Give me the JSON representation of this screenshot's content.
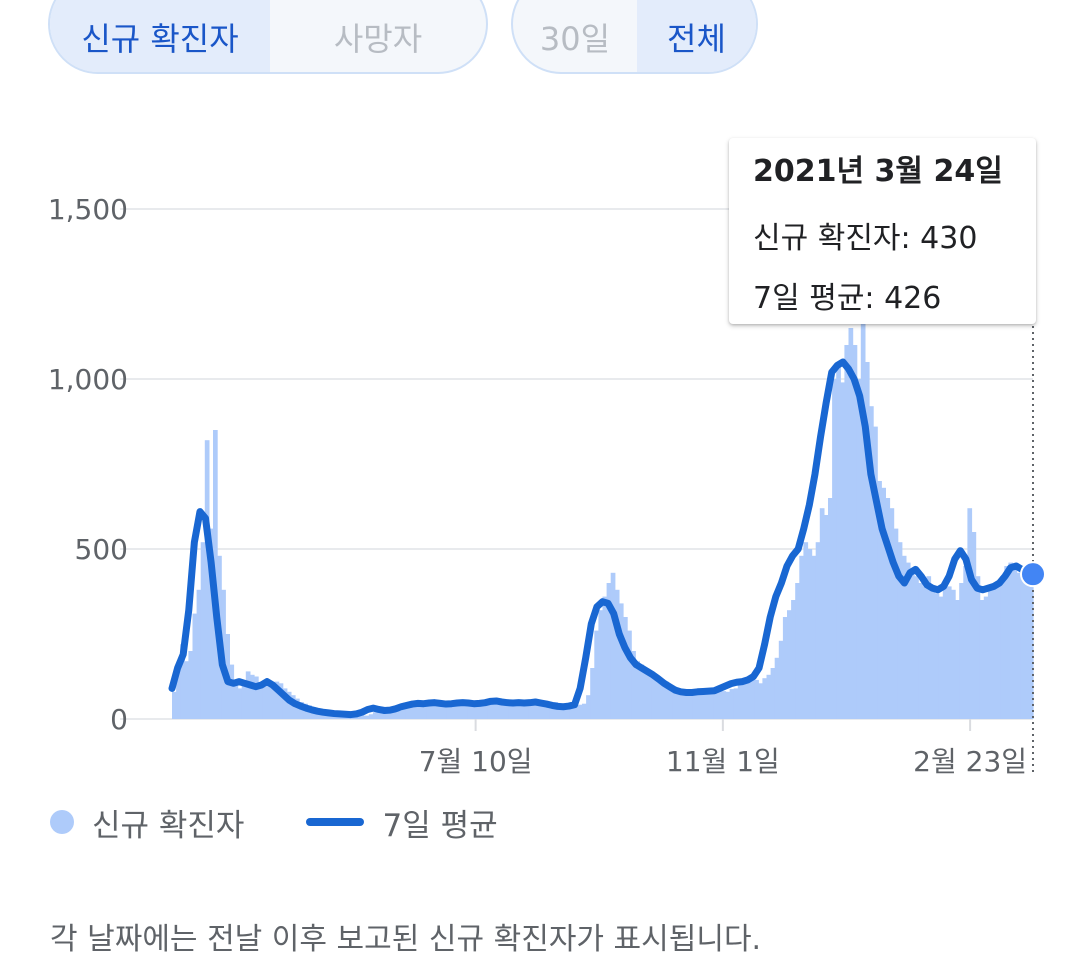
{
  "metric_toggle": {
    "options": [
      {
        "label": "신규 확진자",
        "selected": true
      },
      {
        "label": "사망자",
        "selected": false
      }
    ]
  },
  "range_toggle": {
    "options": [
      {
        "label": "30일",
        "selected": false
      },
      {
        "label": "전체",
        "selected": true
      }
    ]
  },
  "tooltip": {
    "date": "2021년 3월 24일",
    "new_cases": "신규 확진자: 430",
    "avg7": "7일 평균: 426"
  },
  "legend": {
    "bars_label": "신규 확진자",
    "line_label": "7일 평균"
  },
  "footnote": "각 날짜에는 전날 이후 보고된 신규 확진자가 표시됩니다.",
  "colors": {
    "bars": "#aecbfa",
    "line": "#1967d2",
    "grid": "#e8eaed"
  },
  "chart_data": {
    "type": "bar",
    "title": "",
    "xlabel": "",
    "ylabel": "",
    "ylim": [
      0,
      1700
    ],
    "y_ticks": [
      "0",
      "500",
      "1,000",
      "1,500"
    ],
    "y_tick_values": [
      0,
      500,
      1000,
      1500
    ],
    "x_ticks": [
      {
        "label": "7월 10일",
        "day": 140
      },
      {
        "label": "11월 1일",
        "day": 254
      },
      {
        "label": "2월 23일",
        "day": 368
      }
    ],
    "series": [
      {
        "name": "신규 확진자",
        "type": "bar",
        "x_start_day": 0,
        "x_end_day": 397,
        "values": [
          80,
          150,
          220,
          170,
          200,
          310,
          380,
          520,
          820,
          560,
          850,
          480,
          380,
          250,
          160,
          110,
          90,
          110,
          140,
          130,
          125,
          100,
          95,
          100,
          90,
          110,
          105,
          90,
          80,
          70,
          60,
          50,
          45,
          40,
          35,
          30,
          28,
          25,
          22,
          20,
          18,
          16,
          15,
          14,
          12,
          12,
          10,
          10,
          14,
          20,
          30,
          35,
          28,
          25,
          20,
          24,
          30,
          40,
          50,
          45,
          40,
          42,
          48,
          50,
          55,
          45,
          40,
          45,
          50,
          55,
          48,
          45,
          40,
          50,
          55,
          45,
          48,
          50,
          60,
          55,
          52,
          50,
          55,
          48,
          45,
          50,
          55,
          45,
          48,
          50,
          45,
          40,
          45,
          50,
          42,
          40,
          35,
          38,
          40,
          42,
          45,
          70,
          150,
          260,
          320,
          360,
          400,
          430,
          380,
          340,
          300,
          260,
          200,
          170,
          160,
          150,
          140,
          130,
          120,
          115,
          110,
          100,
          95,
          90,
          85,
          80,
          75,
          70,
          72,
          75,
          80,
          78,
          75,
          85,
          82,
          80,
          88,
          90,
          100,
          105,
          110,
          120,
          115,
          105,
          120,
          130,
          150,
          180,
          230,
          300,
          320,
          350,
          400,
          480,
          520,
          500,
          480,
          520,
          620,
          600,
          650,
          1000,
          1050,
          990,
          1100,
          1150,
          1100,
          1000,
          1240,
          1050,
          920,
          860,
          700,
          680,
          650,
          620,
          560,
          520,
          480,
          460,
          440,
          420,
          400,
          390,
          420,
          380,
          370,
          360,
          400,
          390,
          380,
          350,
          400,
          450,
          620,
          550,
          420,
          350,
          360,
          380,
          390,
          400,
          420,
          450,
          460,
          440,
          430,
          450,
          420,
          430
        ]
      },
      {
        "name": "7일 평균",
        "type": "line",
        "x_start_day": 0,
        "x_end_day": 397,
        "values": [
          90,
          150,
          190,
          320,
          520,
          610,
          590,
          460,
          300,
          160,
          110,
          105,
          110,
          105,
          100,
          95,
          100,
          110,
          100,
          85,
          70,
          55,
          45,
          38,
          32,
          27,
          23,
          20,
          18,
          16,
          15,
          14,
          13,
          15,
          20,
          28,
          32,
          28,
          25,
          26,
          30,
          36,
          40,
          44,
          46,
          45,
          47,
          48,
          46,
          44,
          45,
          47,
          48,
          47,
          45,
          46,
          48,
          52,
          53,
          50,
          48,
          47,
          48,
          47,
          48,
          50,
          47,
          44,
          40,
          37,
          36,
          38,
          42,
          90,
          180,
          280,
          330,
          345,
          340,
          310,
          250,
          210,
          180,
          160,
          150,
          140,
          130,
          118,
          105,
          95,
          85,
          80,
          78,
          78,
          80,
          81,
          82,
          83,
          90,
          97,
          104,
          108,
          110,
          115,
          125,
          150,
          220,
          300,
          360,
          400,
          450,
          480,
          500,
          560,
          630,
          720,
          830,
          930,
          1020,
          1040,
          1050,
          1030,
          1000,
          950,
          860,
          720,
          640,
          560,
          510,
          460,
          420,
          400,
          430,
          440,
          420,
          395,
          385,
          380,
          390,
          420,
          470,
          495,
          470,
          410,
          385,
          380,
          385,
          390,
          400,
          420,
          445,
          450,
          440,
          430,
          426
        ]
      }
    ],
    "highlight": {
      "date": "2021년 3월 24일",
      "new_cases": 430,
      "avg7": 426
    }
  }
}
